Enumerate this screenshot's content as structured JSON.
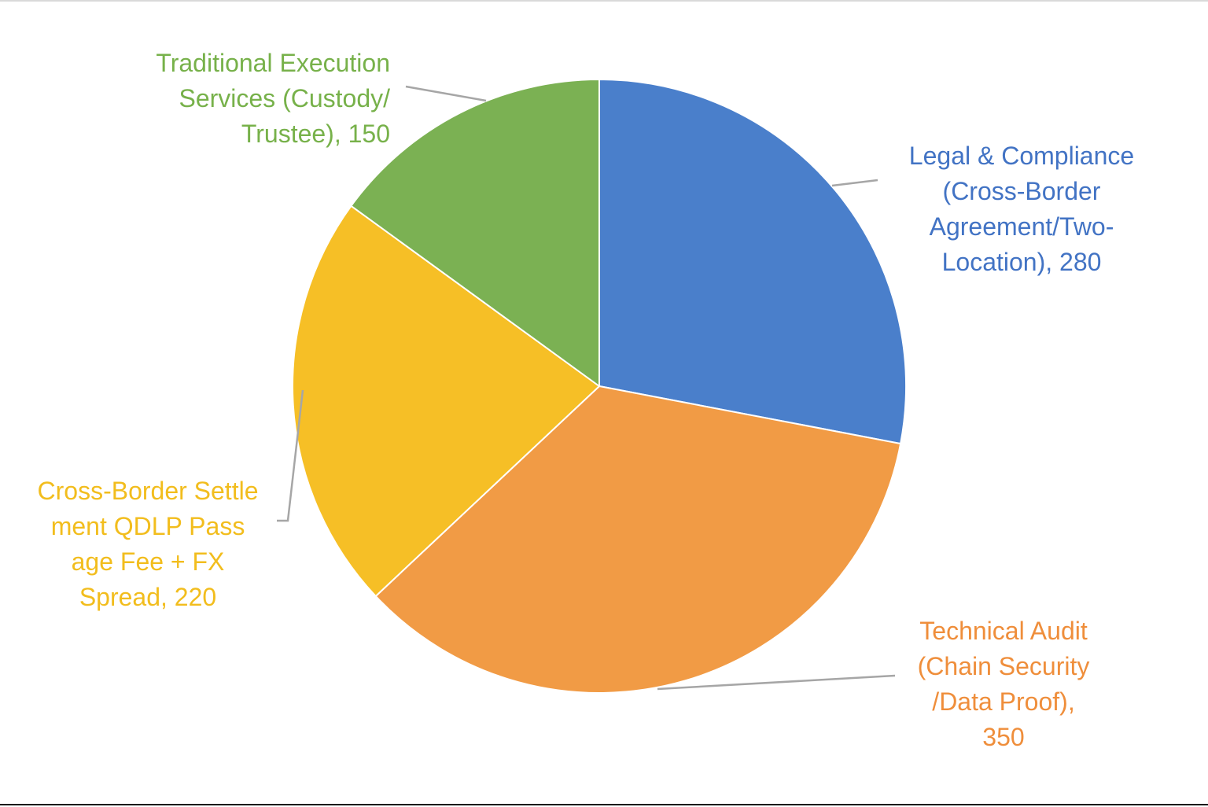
{
  "chart_data": {
    "type": "pie",
    "title": "",
    "start_angle_deg": 0,
    "direction": "clockwise",
    "slice_border_color": "#ffffff",
    "leader_line_color": "#a6a6a6",
    "slices": [
      {
        "label": "Legal & Compliance (Cross-Border Agreement/Two-Location)",
        "label_lines": [
          "Legal & Compliance",
          "(Cross-Border",
          "Agreement/Two-",
          "Location), 280"
        ],
        "value": 280,
        "color": "#4a7fcb",
        "text_color": "#4273c4"
      },
      {
        "label": "Technical Audit (Chain Security/Data Proof)",
        "label_lines": [
          "Technical Audit",
          "(Chain Security",
          "/Data Proof),",
          "350"
        ],
        "value": 350,
        "color": "#f19b45",
        "text_color": "#ef8e3b"
      },
      {
        "label": "Cross-Border Settlement QDLP Passage Fee + FX Spread",
        "label_lines": [
          "Cross-Border Settle",
          "ment QDLP Pass",
          "age Fee + FX",
          "Spread, 220"
        ],
        "value": 220,
        "color": "#f6bf26",
        "text_color": "#f2bd1d"
      },
      {
        "label": "Traditional Execution Services (Custody/Trustee)",
        "label_lines": [
          "Traditional Execution",
          "Services (Custody/",
          "Trustee), 150"
        ],
        "value": 150,
        "color": "#7bb153",
        "text_color": "#77b14a"
      }
    ]
  }
}
